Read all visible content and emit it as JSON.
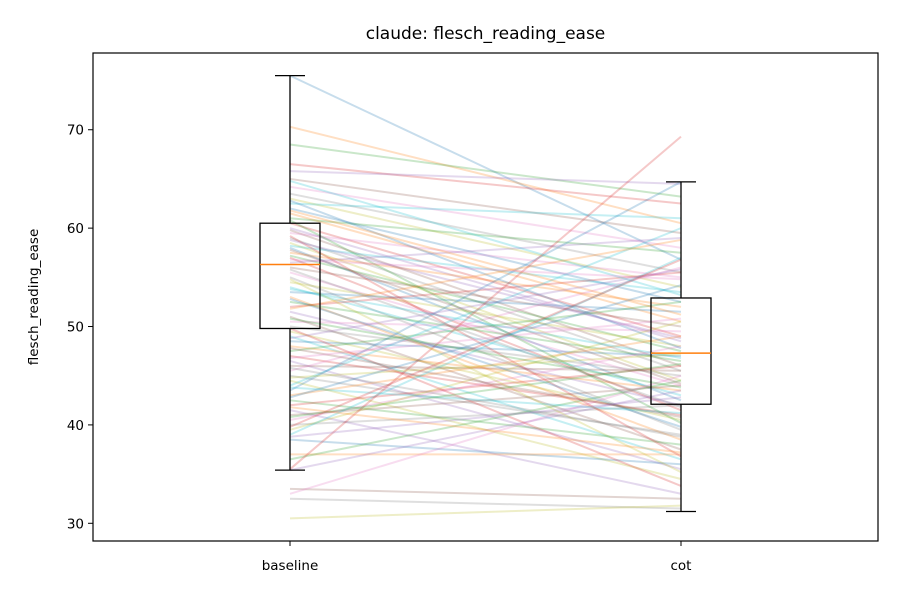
{
  "chart_data": {
    "type": "box",
    "title": "claude: flesch_reading_ease",
    "xlabel": "",
    "ylabel": "flesch_reading_ease",
    "categories": [
      "baseline",
      "cot"
    ],
    "y_ticks": [
      30,
      40,
      50,
      60,
      70
    ],
    "ylim": [
      28.2,
      77.8
    ],
    "grid": false,
    "boxes": [
      {
        "category": "baseline",
        "whisker_low": 35.4,
        "q1": 49.8,
        "median": 56.3,
        "q3": 60.5,
        "whisker_high": 75.5
      },
      {
        "category": "cot",
        "whisker_low": 31.2,
        "q1": 42.1,
        "median": 47.3,
        "q3": 52.9,
        "whisker_high": 64.7
      }
    ],
    "paired_lines": [
      [
        75.5,
        56.8
      ],
      [
        70.3,
        60.5
      ],
      [
        68.5,
        63.2
      ],
      [
        66.5,
        62.5
      ],
      [
        65.8,
        64.5
      ],
      [
        65.0,
        59.5
      ],
      [
        64.2,
        58.0
      ],
      [
        63.5,
        55.5
      ],
      [
        63.0,
        54.0
      ],
      [
        62.5,
        61.0
      ],
      [
        62.0,
        52.5
      ],
      [
        61.5,
        50.5
      ],
      [
        61.0,
        57.5
      ],
      [
        60.5,
        49.0
      ],
      [
        60.0,
        48.5
      ],
      [
        59.8,
        46.0
      ],
      [
        59.5,
        55.0
      ],
      [
        59.0,
        45.5
      ],
      [
        58.5,
        44.5
      ],
      [
        58.2,
        53.5
      ],
      [
        58.0,
        42.5
      ],
      [
        57.5,
        52.0
      ],
      [
        57.2,
        47.5
      ],
      [
        57.0,
        41.5
      ],
      [
        56.5,
        59.0
      ],
      [
        56.0,
        50.0
      ],
      [
        55.5,
        44.0
      ],
      [
        55.0,
        39.5
      ],
      [
        54.5,
        48.0
      ],
      [
        54.0,
        43.0
      ],
      [
        53.5,
        51.5
      ],
      [
        53.0,
        38.5
      ],
      [
        52.5,
        46.5
      ],
      [
        52.0,
        55.5
      ],
      [
        51.5,
        42.0
      ],
      [
        51.0,
        37.5
      ],
      [
        50.5,
        49.5
      ],
      [
        50.0,
        45.0
      ],
      [
        49.5,
        40.5
      ],
      [
        49.0,
        36.5
      ],
      [
        48.5,
        47.0
      ],
      [
        48.0,
        43.5
      ],
      [
        47.5,
        52.5
      ],
      [
        47.0,
        41.0
      ],
      [
        46.5,
        35.5
      ],
      [
        46.0,
        45.5
      ],
      [
        45.5,
        56.0
      ],
      [
        45.0,
        39.0
      ],
      [
        44.5,
        34.5
      ],
      [
        44.0,
        60.0
      ],
      [
        43.5,
        64.7
      ],
      [
        43.0,
        49.0
      ],
      [
        42.5,
        38.0
      ],
      [
        42.0,
        46.0
      ],
      [
        41.5,
        33.0
      ],
      [
        41.0,
        44.0
      ],
      [
        40.5,
        48.0
      ],
      [
        40.0,
        42.0
      ],
      [
        39.5,
        50.5
      ],
      [
        39.0,
        57.0
      ],
      [
        38.5,
        36.0
      ],
      [
        37.0,
        37.0
      ],
      [
        36.5,
        44.5
      ],
      [
        35.5,
        69.3
      ],
      [
        35.4,
        43.5
      ],
      [
        33.5,
        32.5
      ],
      [
        33.0,
        45.0
      ],
      [
        32.5,
        31.5
      ],
      [
        30.5,
        31.8
      ],
      [
        64.8,
        53.2
      ],
      [
        62.8,
        47.8
      ],
      [
        61.8,
        51.2
      ],
      [
        60.8,
        40.2
      ],
      [
        59.2,
        36.8
      ],
      [
        58.8,
        48.8
      ],
      [
        57.8,
        44.2
      ],
      [
        56.8,
        54.8
      ],
      [
        55.8,
        41.8
      ],
      [
        54.8,
        35.2
      ],
      [
        53.8,
        46.8
      ],
      [
        52.8,
        39.8
      ],
      [
        51.8,
        58.8
      ],
      [
        50.8,
        43.8
      ],
      [
        49.8,
        33.8
      ],
      [
        48.8,
        55.8
      ],
      [
        47.8,
        40.8
      ],
      [
        46.8,
        50.8
      ],
      [
        45.8,
        38.8
      ],
      [
        44.8,
        47.2
      ],
      [
        43.8,
        41.2
      ],
      [
        42.8,
        54.2
      ],
      [
        41.8,
        37.2
      ],
      [
        40.8,
        46.2
      ],
      [
        39.8,
        56.8
      ],
      [
        38.8,
        42.8
      ]
    ],
    "line_colors": [
      "#1f77b4",
      "#ff7f0e",
      "#2ca02c",
      "#d62728",
      "#9467bd",
      "#8c564b",
      "#e377c2",
      "#7f7f7f",
      "#bcbd22",
      "#17becf"
    ]
  }
}
